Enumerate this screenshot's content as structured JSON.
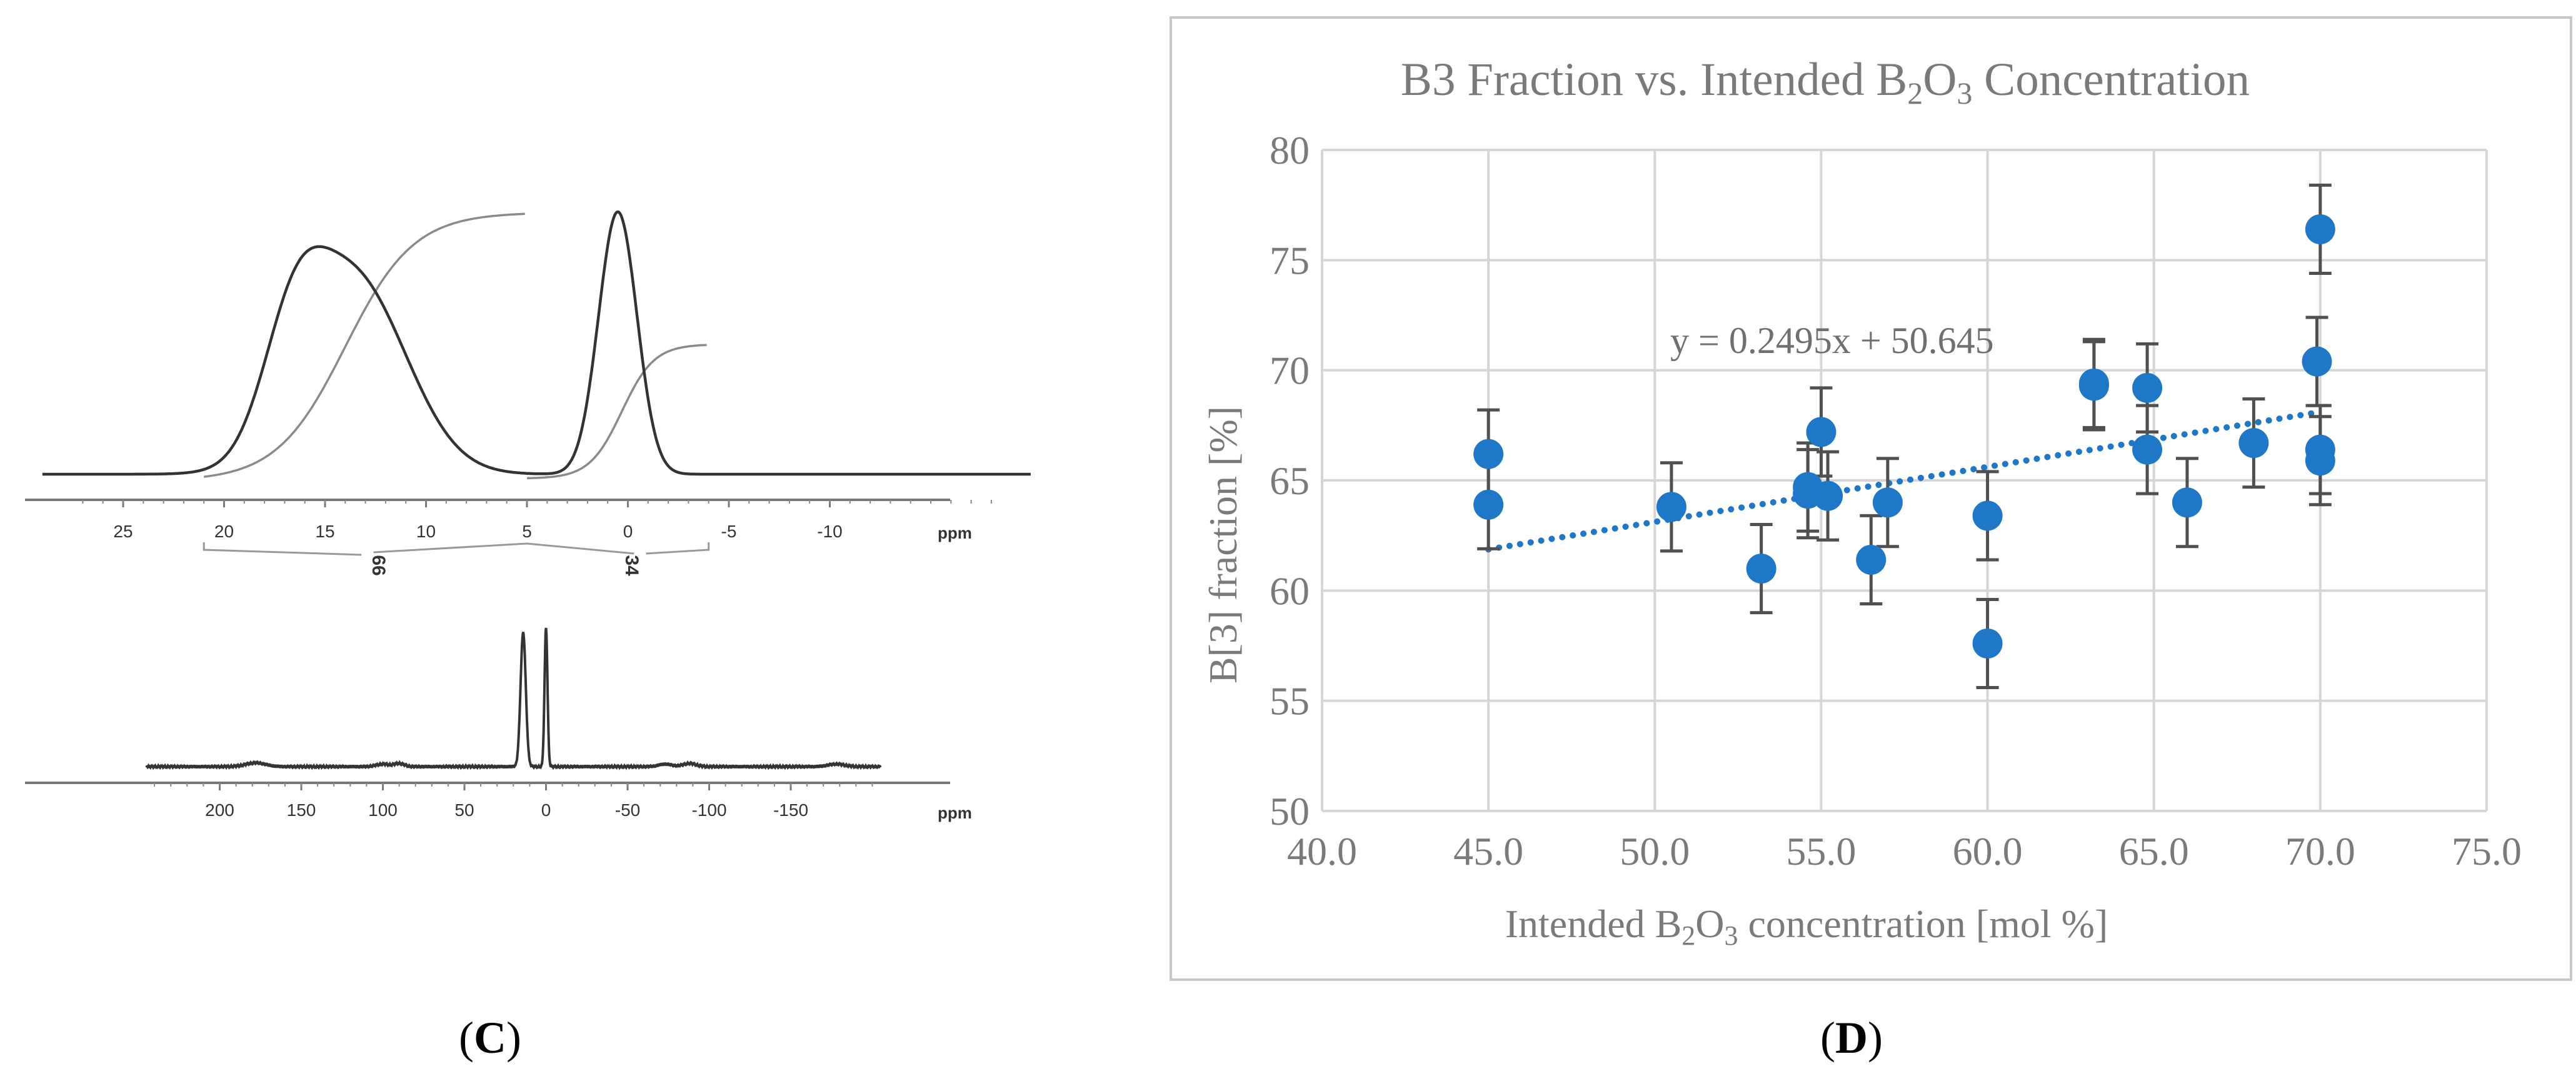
{
  "panel_c": {
    "label_open": "(",
    "label_letter": "C",
    "label_close": ")",
    "spectrum_top": {
      "x_ticks": [
        "25",
        "20",
        "15",
        "10",
        "5",
        "0",
        "-5",
        "-10"
      ],
      "x_unit": "ppm",
      "integrals": [
        "66",
        "34"
      ]
    },
    "spectrum_bottom": {
      "x_ticks": [
        "200",
        "150",
        "100",
        "50",
        "0",
        "-50",
        "-100",
        "-150"
      ],
      "x_unit": "ppm"
    }
  },
  "panel_d": {
    "label_open": "(",
    "label_letter": "D",
    "label_close": ")"
  },
  "chart_data": [
    {
      "type": "line",
      "title": "",
      "xlabel": "ppm",
      "ylabel": "",
      "x_range": [
        29,
        -20
      ],
      "x_ticks": [
        "25",
        "20",
        "15",
        "10",
        "5",
        "0",
        "-5",
        "-10"
      ],
      "series": [
        {
          "name": "spectrum",
          "description": "two peaks, broad near 14 ppm and sharp near 0.5 ppm"
        },
        {
          "name": "integral"
        }
      ],
      "integrals": [
        {
          "region": [
            21,
            5
          ],
          "value": "66"
        },
        {
          "region": [
            5,
            -4
          ],
          "value": "34"
        }
      ]
    },
    {
      "type": "line",
      "title": "",
      "xlabel": "ppm",
      "ylabel": "",
      "x_range": [
        245,
        -205
      ],
      "x_ticks": [
        "200",
        "150",
        "100",
        "50",
        "0",
        "-50",
        "-100",
        "-150"
      ],
      "series": [
        {
          "name": "spectrum",
          "description": "two sharp peaks near 14 ppm and 0 ppm"
        }
      ]
    },
    {
      "type": "scatter",
      "title_parts": [
        "B3 Fraction vs. Intended B",
        "2",
        "O",
        "3",
        " Concentration"
      ],
      "xlabel_parts": [
        "Intended B",
        "2",
        "O",
        "3",
        " concentration [mol %]"
      ],
      "ylabel": "B[3] fraction [%]",
      "xlim": [
        40,
        75
      ],
      "ylim": [
        50,
        80
      ],
      "x_ticks": [
        "40.0",
        "45.0",
        "50.0",
        "55.0",
        "60.0",
        "65.0",
        "70.0",
        "75.0"
      ],
      "y_ticks": [
        "50",
        "55",
        "60",
        "65",
        "70",
        "75",
        "80"
      ],
      "grid": true,
      "error_bar": 2,
      "marker_color": "#1f77c8",
      "errorbar_color": "#505050",
      "points": [
        {
          "x": 45.0,
          "y": 66.2
        },
        {
          "x": 45.0,
          "y": 63.9
        },
        {
          "x": 50.5,
          "y": 63.8
        },
        {
          "x": 53.2,
          "y": 61.0
        },
        {
          "x": 54.6,
          "y": 64.7
        },
        {
          "x": 54.6,
          "y": 64.4
        },
        {
          "x": 55.0,
          "y": 67.2
        },
        {
          "x": 55.2,
          "y": 64.3
        },
        {
          "x": 56.5,
          "y": 61.4
        },
        {
          "x": 57.0,
          "y": 64.0
        },
        {
          "x": 60.0,
          "y": 63.4
        },
        {
          "x": 60.0,
          "y": 57.6
        },
        {
          "x": 63.2,
          "y": 69.4
        },
        {
          "x": 63.2,
          "y": 69.3
        },
        {
          "x": 64.8,
          "y": 69.2
        },
        {
          "x": 64.8,
          "y": 66.4
        },
        {
          "x": 66.0,
          "y": 64.0
        },
        {
          "x": 68.0,
          "y": 66.7
        },
        {
          "x": 69.9,
          "y": 70.4
        },
        {
          "x": 70.0,
          "y": 76.4
        },
        {
          "x": 70.0,
          "y": 66.4
        },
        {
          "x": 70.0,
          "y": 65.9
        }
      ],
      "trendline": {
        "equation": "y = 0.2495x + 50.645",
        "slope": 0.2495,
        "intercept": 50.645,
        "x_from": 45.0,
        "x_to": 70.0,
        "style": "dotted",
        "color": "#1f77c8"
      }
    }
  ]
}
